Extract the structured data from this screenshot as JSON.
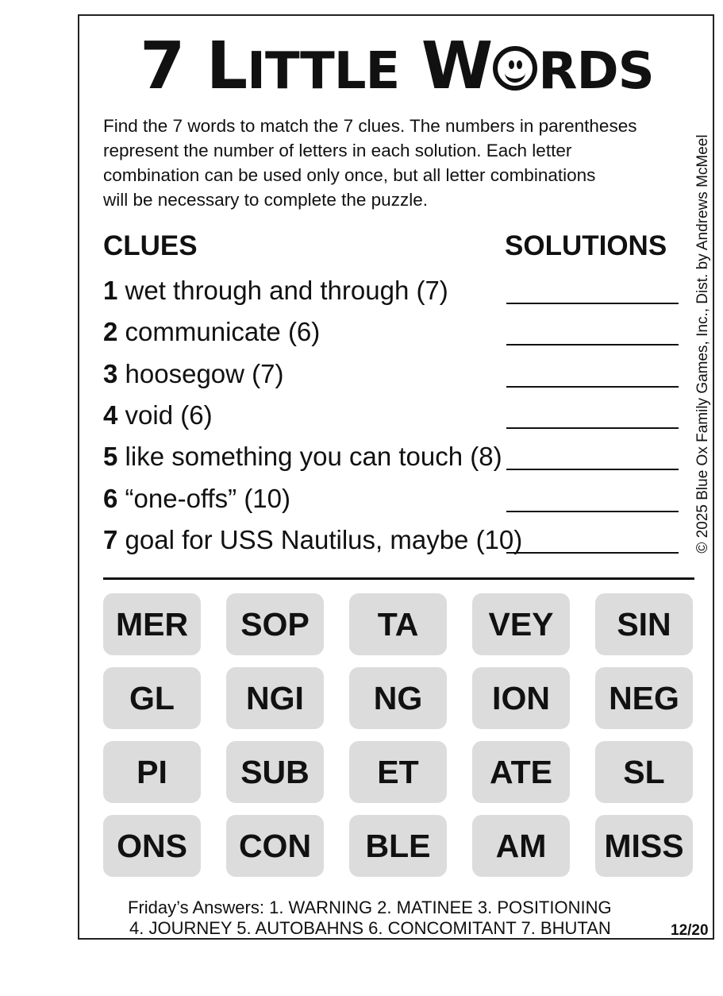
{
  "title": {
    "number": "7",
    "l": "L",
    "ittle": "ITTLE",
    "w": "W",
    "o_icon": "smiley-face-icon",
    "rds": "RDS"
  },
  "instructions": "Find the 7 words to match the 7 clues. The numbers in parentheses\nrepresent the number of letters in each solution. Each letter\ncombination can be used only once, but all letter combinations\nwill be necessary to complete the puzzle.",
  "headers": {
    "clues": "CLUES",
    "solutions": "SOLUTIONS"
  },
  "clues": [
    {
      "num": "1",
      "text": " wet through and through (7)"
    },
    {
      "num": "2",
      "text": " communicate (6)"
    },
    {
      "num": "3",
      "text": " hoosegow (7)"
    },
    {
      "num": "4",
      "text": " void (6)"
    },
    {
      "num": "5",
      "text": " like something you can touch (8)"
    },
    {
      "num": "6",
      "text": " “one-offs” (10)"
    },
    {
      "num": "7",
      "text": " goal for USS Nautilus, maybe (10)"
    }
  ],
  "tiles": [
    "MER",
    "SOP",
    "TA",
    "VEY",
    "SIN",
    "GL",
    "NGI",
    "NG",
    "ION",
    "NEG",
    "PI",
    "SUB",
    "ET",
    "ATE",
    "SL",
    "ONS",
    "CON",
    "BLE",
    "AM",
    "MISS"
  ],
  "answers": {
    "line1": "Friday’s Answers: 1. WARNING  2. MATINEE  3. POSITIONING",
    "line2": "4. JOURNEY  5. AUTOBAHNS  6. CONCOMITANT  7. BHUTAN",
    "date": "12/20"
  },
  "credit": "© 2025 Blue Ox Family Games, Inc., Dist. by Andrews McMeel"
}
